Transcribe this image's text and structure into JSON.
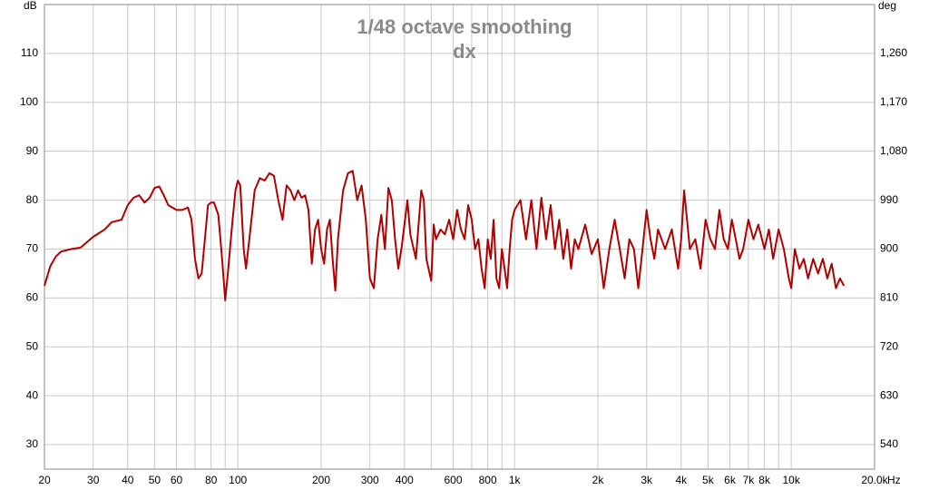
{
  "chart_data": {
    "type": "line",
    "title": "1/48 octave smoothing",
    "subtitle": "dx",
    "y_label": "dB",
    "y2_label": "deg",
    "x_label": "Hz",
    "xscale": "log",
    "grid": true,
    "xlim": [
      20,
      20000
    ],
    "ylim": [
      25,
      120
    ],
    "y2lim": [
      495,
      1350
    ],
    "xticks": [
      20,
      30,
      40,
      50,
      60,
      80,
      100,
      200,
      300,
      400,
      600,
      800,
      {
        "value": 1000,
        "label": "1k"
      },
      {
        "value": 2000,
        "label": "2k"
      },
      {
        "value": 3000,
        "label": "3k"
      },
      {
        "value": 4000,
        "label": "4k"
      },
      {
        "value": 5000,
        "label": "5k"
      },
      {
        "value": 6000,
        "label": "6k"
      },
      {
        "value": 7000,
        "label": "7k"
      },
      {
        "value": 8000,
        "label": "8k"
      },
      {
        "value": 10000,
        "label": "10k"
      },
      {
        "value": 20000,
        "label": "20.0k"
      }
    ],
    "xminor": [
      70,
      90,
      500,
      700,
      900,
      9000
    ],
    "yticks": [
      30,
      40,
      50,
      60,
      70,
      80,
      90,
      100,
      110
    ],
    "y2ticks": [
      540,
      630,
      720,
      810,
      900,
      990,
      {
        "value": 1080,
        "label": "1,080"
      },
      {
        "value": 1170,
        "label": "1,170"
      },
      {
        "value": 1260,
        "label": "1,260"
      }
    ],
    "x": [
      20,
      20.5,
      21,
      22,
      23,
      25,
      27,
      30,
      33,
      35,
      38,
      40,
      42,
      44,
      46,
      48,
      50,
      52,
      54,
      56,
      60,
      63,
      66,
      68,
      70,
      72,
      74,
      76,
      78,
      80,
      82,
      85,
      88,
      90,
      92,
      95,
      98,
      100,
      102,
      105,
      107,
      110,
      115,
      120,
      125,
      130,
      135,
      140,
      145,
      150,
      155,
      160,
      165,
      170,
      175,
      180,
      185,
      190,
      195,
      200,
      205,
      210,
      215,
      220,
      225,
      230,
      240,
      250,
      260,
      270,
      280,
      290,
      300,
      310,
      320,
      330,
      340,
      350,
      360,
      370,
      380,
      390,
      400,
      410,
      420,
      440,
      460,
      470,
      480,
      500,
      510,
      520,
      540,
      560,
      580,
      600,
      620,
      640,
      660,
      680,
      700,
      720,
      740,
      760,
      780,
      800,
      820,
      840,
      860,
      880,
      900,
      920,
      940,
      960,
      980,
      1000,
      1050,
      1100,
      1150,
      1200,
      1250,
      1300,
      1350,
      1400,
      1450,
      1500,
      1550,
      1600,
      1650,
      1700,
      1800,
      1900,
      2000,
      2100,
      2200,
      2300,
      2400,
      2500,
      2600,
      2700,
      2800,
      2900,
      3000,
      3100,
      3200,
      3300,
      3500,
      3700,
      3900,
      4000,
      4100,
      4200,
      4300,
      4500,
      4700,
      4900,
      5100,
      5300,
      5500,
      5700,
      5900,
      6100,
      6300,
      6500,
      6700,
      7000,
      7300,
      7600,
      8000,
      8300,
      8600,
      9000,
      9400,
      9800,
      10000,
      10300,
      10700,
      11100,
      11500,
      12000,
      12500,
      13000,
      13500,
      14000,
      14500,
      15000,
      15500
    ],
    "series": [
      {
        "name": "dx",
        "color": "#b00000",
        "values": [
          62.5,
          64.5,
          66.5,
          68.5,
          69.5,
          70,
          70.3,
          72.5,
          74,
          75.5,
          76,
          79,
          80.5,
          81,
          79.5,
          80.5,
          82.5,
          82.8,
          81,
          79,
          78,
          78,
          78.5,
          76,
          68,
          64,
          65,
          72,
          79,
          79.5,
          79.5,
          77,
          67,
          59.5,
          65,
          74,
          82,
          84,
          83,
          70,
          66,
          72,
          82,
          84.5,
          84,
          85.5,
          85,
          80,
          76,
          83,
          82,
          80,
          82,
          80.5,
          81,
          78,
          67,
          74,
          76,
          70,
          67,
          74,
          76,
          68,
          61.5,
          72,
          82,
          85.5,
          86,
          80,
          83,
          76,
          64,
          62,
          72,
          77,
          70,
          82.5,
          80,
          72,
          66,
          70,
          75,
          80,
          73,
          68,
          82,
          80,
          68,
          63.5,
          75,
          72,
          74,
          73,
          76,
          72,
          78,
          74,
          72,
          79,
          76,
          70,
          72,
          66,
          62,
          72,
          68,
          76,
          64,
          62,
          70,
          66,
          62,
          70,
          76,
          78,
          80,
          72,
          80,
          70,
          80.5,
          72,
          79,
          70,
          76,
          68,
          74,
          66,
          72,
          70,
          75,
          69,
          72,
          62,
          70,
          76,
          70,
          64,
          72,
          70,
          62,
          70,
          78,
          72,
          68,
          74,
          70,
          74,
          66,
          72,
          82,
          76,
          70,
          72,
          66,
          76,
          72,
          70,
          78,
          72,
          70,
          76,
          72,
          68,
          70,
          76,
          72,
          75,
          70,
          74,
          68,
          74,
          70,
          64,
          62,
          70,
          66,
          68,
          64,
          68,
          65,
          68,
          64,
          67,
          62,
          64,
          62.5
        ]
      }
    ]
  }
}
